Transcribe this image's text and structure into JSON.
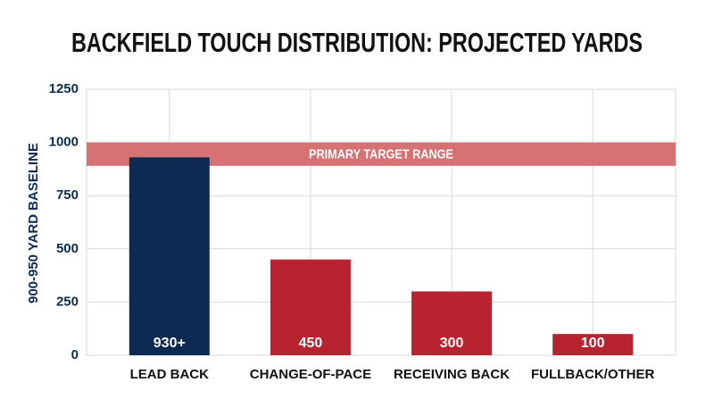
{
  "chart_data": {
    "type": "bar",
    "title": "BACKFIELD TOUCH DISTRIBUTION: PROJECTED YARDS",
    "y_label": "900-950 YARD BASELINE",
    "categories": [
      "LEAD BACK",
      "CHANGE-OF-PACE",
      "RECEIVING BACK",
      "FULLBACK/OTHER"
    ],
    "values": [
      930,
      450,
      300,
      100
    ],
    "value_labels": [
      "930+",
      "450",
      "300",
      "100"
    ],
    "colors": [
      "#0c2a52",
      "#b7242f",
      "#b7242f",
      "#b7242f"
    ],
    "ylim": [
      0,
      1250
    ],
    "yticks": [
      0,
      250,
      500,
      750,
      1000,
      1250
    ],
    "grid": true,
    "band": {
      "label": "PRIMARY TARGET RANGE",
      "from": 890,
      "to": 1000,
      "color": "#d46a6c"
    }
  }
}
